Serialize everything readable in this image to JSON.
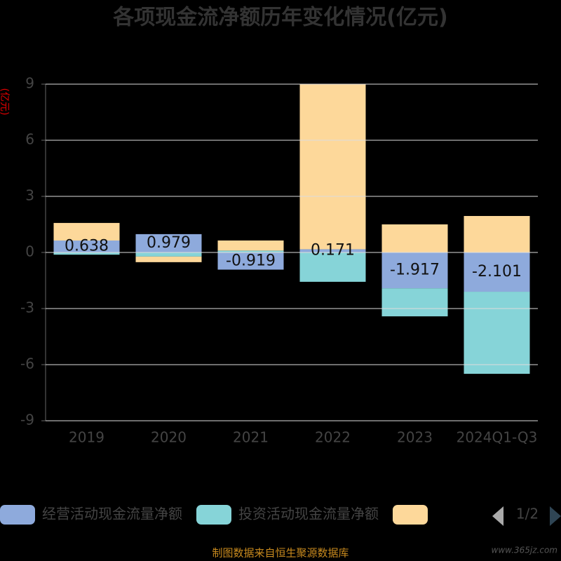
{
  "chart_data": {
    "type": "bar",
    "stacked": true,
    "title": "各项现金流净额历年变化情况(亿元)",
    "y_axis_label": "(亿元)",
    "categories": [
      "2019",
      "2020",
      "2021",
      "2022",
      "2023",
      "2024Q1-Q3"
    ],
    "series": [
      {
        "name": "经营活动现金流量净额",
        "color": "#8eaadc",
        "values": [
          0.638,
          0.979,
          -0.919,
          0.171,
          -1.917,
          -2.101
        ],
        "show_labels": true
      },
      {
        "name": "投资活动现金流量净额",
        "color": "#86d4d8",
        "values": [
          -0.12,
          -0.22,
          0.1,
          -1.57,
          -1.5,
          -4.39
        ]
      },
      {
        "color": "#fdd89a",
        "values": [
          0.94,
          -0.3,
          0.54,
          8.83,
          1.5,
          1.95
        ]
      }
    ],
    "ylim": [
      -9,
      9
    ],
    "yticks": [
      -9,
      -6,
      -3,
      0,
      3,
      6,
      9
    ],
    "grid": true,
    "legend_page": "1/2"
  },
  "footer": "制图数据来自恒生聚源数据库",
  "watermark": "www.365jz.com"
}
